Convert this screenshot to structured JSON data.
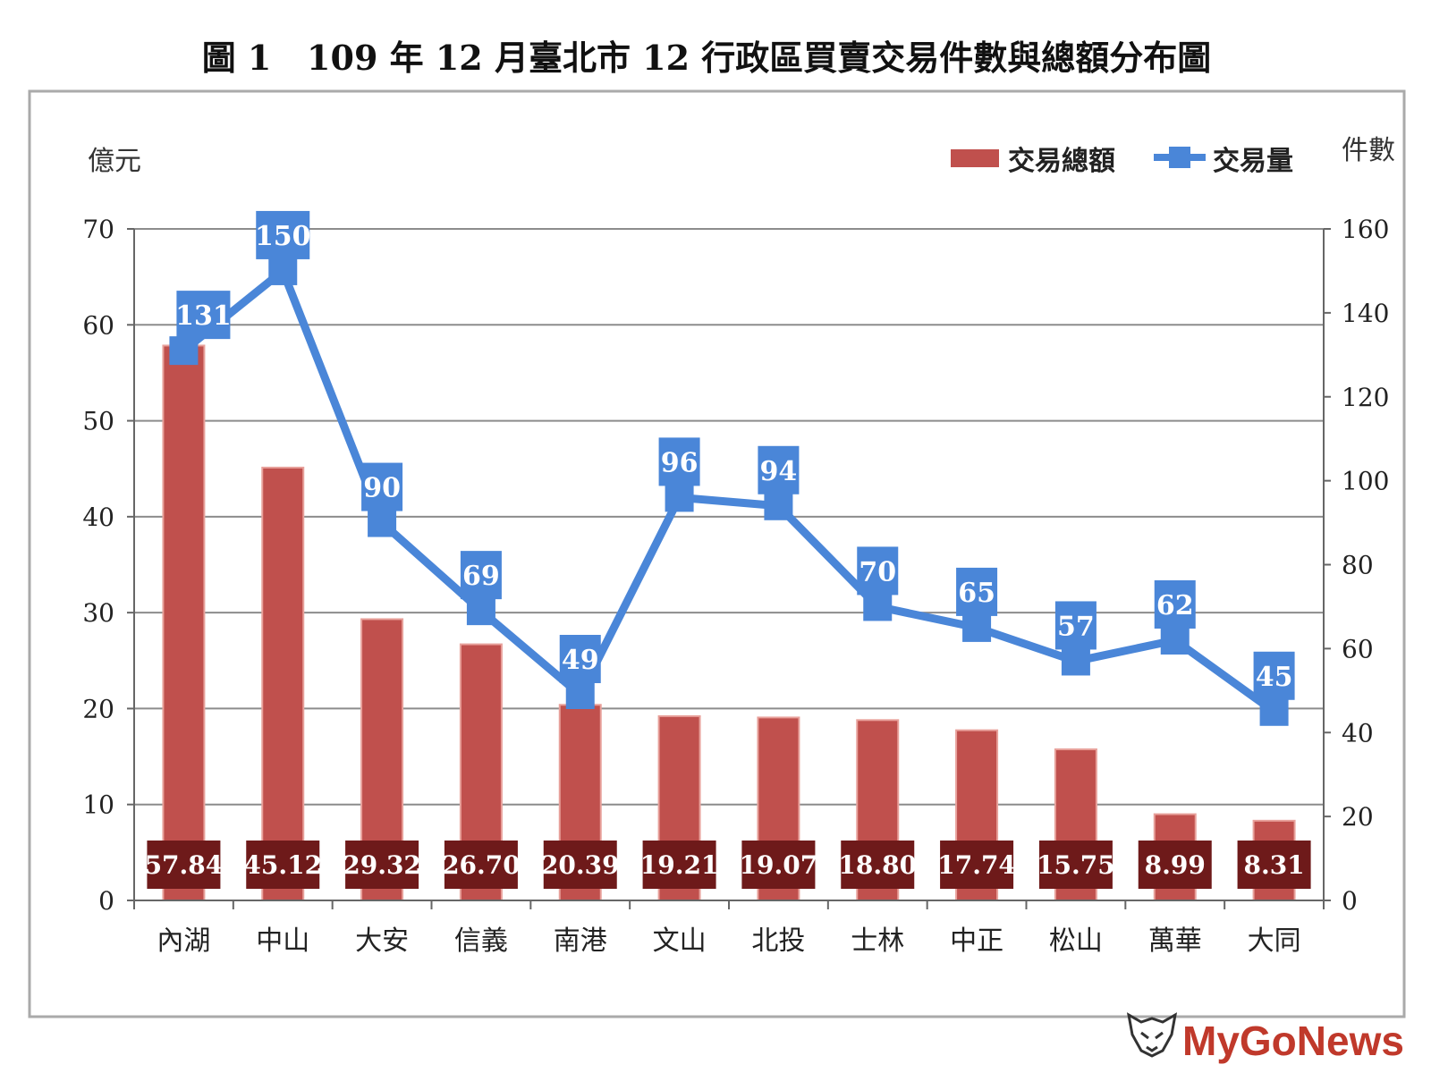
{
  "chart_data": {
    "type": "bar",
    "title": "圖 1   109 年 12 月臺北市 12 行政區買賣交易件數與總額分布圖",
    "y_left_unit": "億元",
    "y_right_unit": "件數",
    "categories": [
      "內湖",
      "中山",
      "大安",
      "信義",
      "南港",
      "文山",
      "北投",
      "士林",
      "中正",
      "松山",
      "萬華",
      "大同"
    ],
    "series": [
      {
        "name": "交易總額",
        "type": "bar",
        "axis": "left",
        "color": "#c0504d",
        "values": [
          57.84,
          45.12,
          29.32,
          26.7,
          20.39,
          19.21,
          19.07,
          18.8,
          17.74,
          15.75,
          8.99,
          8.31
        ],
        "labels": [
          "57.84",
          "45.12",
          "29.32",
          "26.70",
          "20.39",
          "19.21",
          "19.07",
          "18.80",
          "17.74",
          "15.75",
          "8.99",
          "8.31"
        ]
      },
      {
        "name": "交易量",
        "type": "line",
        "axis": "right",
        "color": "#4a86d8",
        "values": [
          131,
          150,
          90,
          69,
          49,
          96,
          94,
          70,
          65,
          57,
          62,
          45
        ],
        "labels": [
          "131",
          "150",
          "90",
          "69",
          "49",
          "96",
          "94",
          "70",
          "65",
          "57",
          "62",
          "45"
        ]
      }
    ],
    "y_left": {
      "min": 0,
      "max": 70,
      "ticks": [
        "0",
        "10",
        "20",
        "30",
        "40",
        "50",
        "60",
        "70"
      ]
    },
    "y_right": {
      "min": 0,
      "max": 160,
      "ticks": [
        "0",
        "20",
        "40",
        "60",
        "80",
        "100",
        "120",
        "140",
        "160"
      ]
    },
    "grid": true,
    "legend_position": "top-right",
    "bar_label_color": "#6e1a1a"
  },
  "watermark": "MyGoNews"
}
